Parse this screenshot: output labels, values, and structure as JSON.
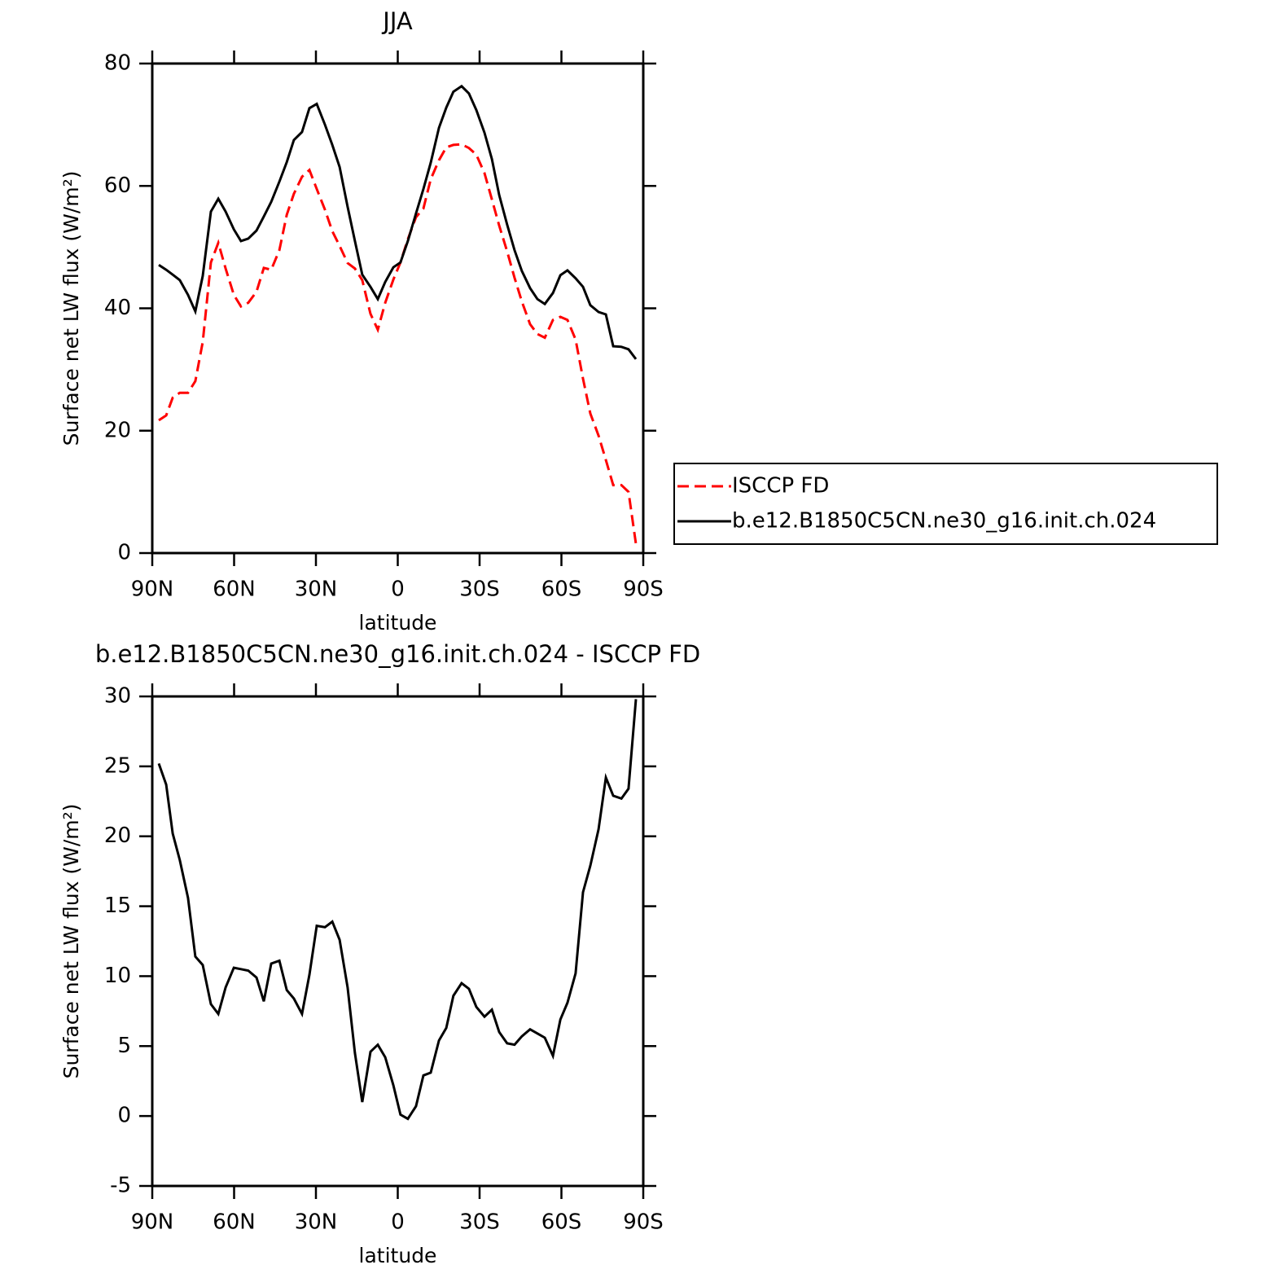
{
  "chart_data": [
    {
      "type": "line",
      "title": "JJA",
      "x_label": "latitude",
      "y_label": "Surface net LW flux (W/m²)",
      "xlim": [
        90,
        -90
      ],
      "xticks": [
        {
          "value": 90,
          "label": "90N"
        },
        {
          "value": 60,
          "label": "60N"
        },
        {
          "value": 30,
          "label": "30N"
        },
        0,
        {
          "value": -30,
          "label": "30S"
        },
        {
          "value": -60,
          "label": "60S"
        },
        {
          "value": -90,
          "label": "90S"
        }
      ],
      "ylim": [
        0,
        80
      ],
      "yticks": [
        0,
        20,
        40,
        60,
        80
      ],
      "legend": "outside-right",
      "x": [
        87.6,
        84.9,
        82.5,
        79.9,
        76.9,
        74.2,
        71.5,
        68.5,
        65.8,
        63.1,
        60.1,
        57.5,
        54.8,
        51.8,
        49.1,
        46.4,
        43.4,
        40.7,
        38.1,
        35.1,
        32.4,
        29.7,
        26.7,
        24.0,
        21.3,
        18.4,
        15.7,
        13.0,
        10.0,
        7.3,
        4.6,
        1.6,
        -1.0,
        -3.7,
        -6.7,
        -9.4,
        -12.1,
        -15.1,
        -17.8,
        -20.4,
        -23.4,
        -26.1,
        -28.8,
        -31.8,
        -34.5,
        -37.2,
        -40.1,
        -42.8,
        -45.5,
        -48.5,
        -51.2,
        -53.9,
        -56.9,
        -59.6,
        -62.2,
        -65.2,
        -67.9,
        -70.6,
        -73.6,
        -76.3,
        -79.0,
        -82.0,
        -84.6,
        -87.3
      ],
      "series": [
        {
          "name": "ISCCP FD",
          "color": "#ff0000",
          "dash": "dashed",
          "values": [
            21.7,
            22.5,
            25.4,
            26.2,
            26.2,
            28.1,
            34.5,
            47.5,
            50.7,
            46.5,
            42.2,
            40.3,
            40.9,
            42.7,
            46.6,
            46.3,
            49.5,
            55.3,
            58.7,
            61.5,
            62.6,
            59.5,
            56.1,
            52.6,
            50.2,
            47.4,
            46.5,
            44.6,
            39.1,
            36.5,
            40.9,
            44.7,
            47.5,
            51.3,
            54.9,
            56.3,
            61.1,
            64.2,
            66.3,
            66.7,
            66.8,
            66.2,
            65.1,
            62.1,
            57.8,
            53.5,
            49.3,
            45.0,
            41.1,
            37.4,
            35.8,
            35.2,
            38.1,
            38.6,
            38.1,
            34.9,
            28.5,
            22.8,
            19.2,
            15.2,
            11.1,
            11.1,
            10.0,
            1.5
          ]
        },
        {
          "name": "b.e12.B1850C5CN.ne30_g16.init.ch.024",
          "color": "#000000",
          "dash": "solid",
          "values": [
            47.1,
            46.3,
            45.5,
            44.6,
            42.2,
            39.5,
            45.3,
            55.8,
            57.9,
            55.8,
            52.9,
            51.0,
            51.4,
            52.7,
            55.0,
            57.4,
            60.7,
            63.9,
            67.5,
            68.8,
            72.7,
            73.4,
            70.0,
            66.7,
            63.1,
            56.6,
            51.0,
            45.5,
            43.5,
            41.5,
            44.3,
            46.7,
            47.5,
            51.0,
            55.5,
            59.5,
            63.8,
            69.5,
            72.8,
            75.4,
            76.3,
            75.1,
            72.4,
            68.7,
            64.4,
            58.5,
            53.7,
            49.5,
            46.1,
            43.3,
            41.5,
            40.7,
            42.5,
            45.4,
            46.2,
            44.9,
            43.5,
            40.5,
            39.4,
            39.0,
            33.8,
            33.7,
            33.3,
            31.7
          ]
        }
      ]
    },
    {
      "type": "line",
      "title": "b.e12.B1850C5CN.ne30_g16.init.ch.024 - ISCCP FD",
      "x_label": "latitude",
      "y_label": "Surface net LW flux (W/m²)",
      "xlim": [
        90,
        -90
      ],
      "xticks": [
        {
          "value": 90,
          "label": "90N"
        },
        {
          "value": 60,
          "label": "60N"
        },
        {
          "value": 30,
          "label": "30N"
        },
        0,
        {
          "value": -30,
          "label": "30S"
        },
        {
          "value": -60,
          "label": "60S"
        },
        {
          "value": -90,
          "label": "90S"
        }
      ],
      "ylim": [
        -5,
        30
      ],
      "yticks": [
        -5,
        0,
        5,
        10,
        15,
        20,
        25,
        30
      ],
      "x": [
        87.6,
        84.9,
        82.5,
        79.9,
        76.9,
        74.2,
        71.5,
        68.5,
        65.8,
        63.1,
        60.1,
        57.5,
        54.8,
        51.8,
        49.1,
        46.4,
        43.4,
        40.7,
        38.1,
        35.1,
        32.4,
        29.7,
        26.7,
        24.0,
        21.3,
        18.4,
        15.7,
        13.0,
        10.0,
        7.3,
        4.6,
        1.6,
        -1.0,
        -3.7,
        -6.7,
        -9.4,
        -12.1,
        -15.1,
        -17.8,
        -20.4,
        -23.4,
        -26.1,
        -28.8,
        -31.8,
        -34.5,
        -37.2,
        -40.1,
        -42.8,
        -45.5,
        -48.5,
        -51.2,
        -53.9,
        -56.9,
        -59.6,
        -62.2,
        -65.2,
        -67.9,
        -70.6,
        -73.6,
        -76.3,
        -79.0,
        -82.0,
        -84.6,
        -87.3
      ],
      "series": [
        {
          "name": "b.e12.B1850C5CN.ne30_g16.init.ch.024 - ISCCP FD",
          "color": "#000000",
          "dash": "solid",
          "values": [
            25.2,
            23.7,
            20.2,
            18.3,
            15.6,
            11.4,
            10.8,
            8.0,
            7.3,
            9.2,
            10.6,
            10.5,
            10.4,
            9.9,
            8.2,
            10.9,
            11.1,
            9.0,
            8.4,
            7.3,
            10.1,
            13.6,
            13.5,
            13.9,
            12.6,
            9.2,
            4.5,
            1.0,
            4.6,
            5.1,
            4.2,
            2.2,
            0.1,
            -0.2,
            0.7,
            2.9,
            3.1,
            5.4,
            6.3,
            8.6,
            9.5,
            9.1,
            7.8,
            7.1,
            7.6,
            6.0,
            5.2,
            5.1,
            5.7,
            6.2,
            5.9,
            5.6,
            4.3,
            6.9,
            8.1,
            10.2,
            16.0,
            17.9,
            20.5,
            24.2,
            22.9,
            22.7,
            23.4,
            29.8
          ]
        }
      ]
    }
  ]
}
